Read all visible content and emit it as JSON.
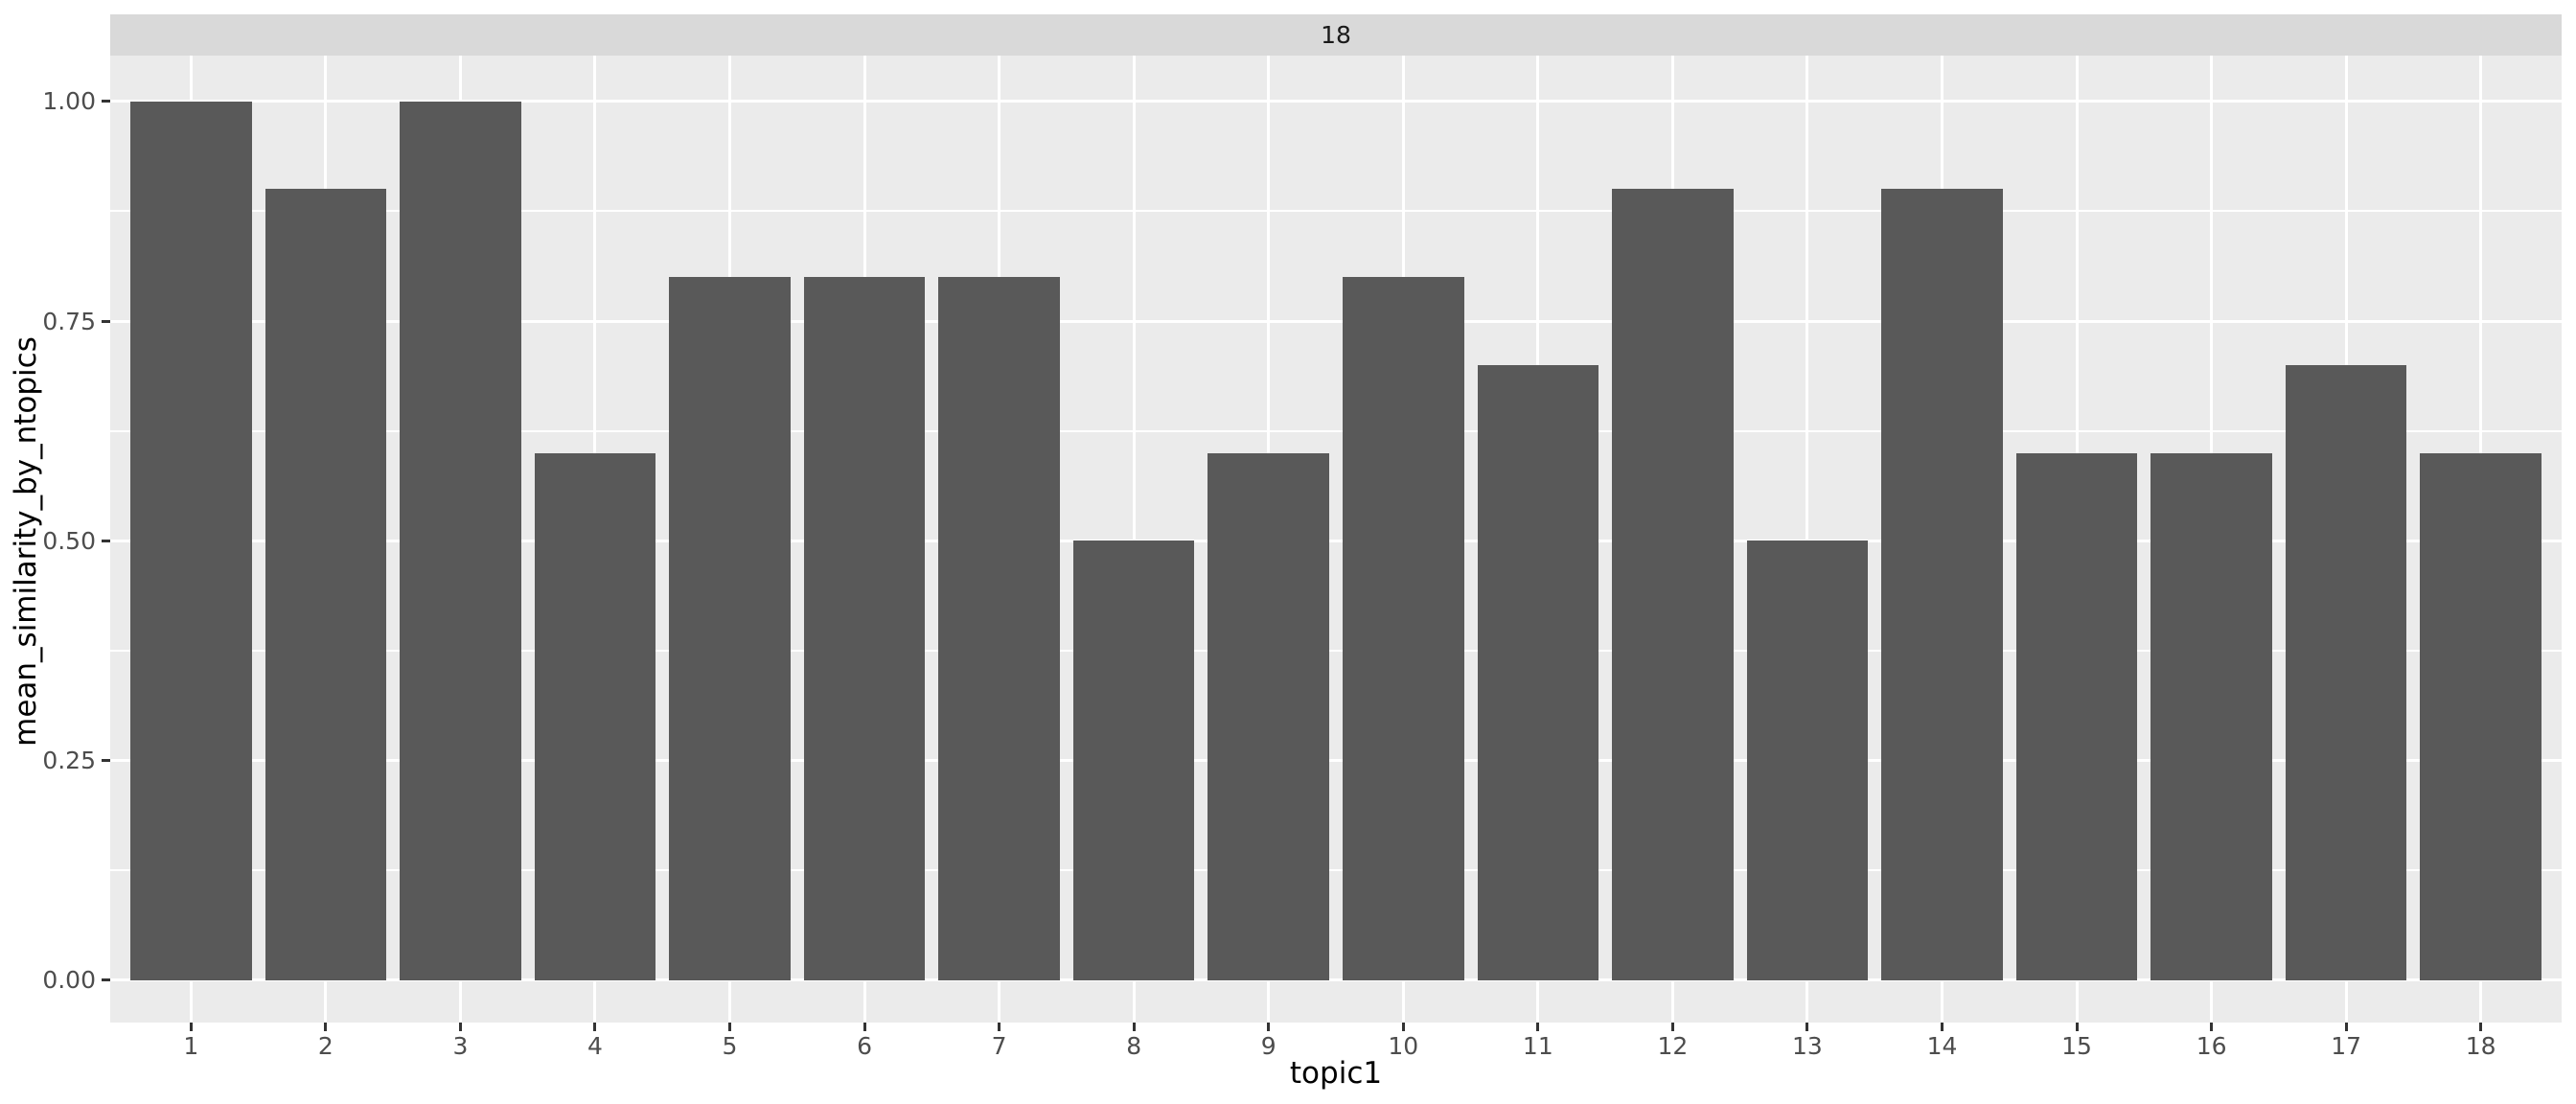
{
  "chart_data": {
    "type": "bar",
    "facet_label": "18",
    "title": "",
    "xlabel": "topic1",
    "ylabel": "mean_similarity_by_ntopics",
    "categories": [
      "1",
      "2",
      "3",
      "4",
      "5",
      "6",
      "7",
      "8",
      "9",
      "10",
      "11",
      "12",
      "13",
      "14",
      "15",
      "16",
      "17",
      "18"
    ],
    "values": [
      1.0,
      0.9,
      1.0,
      0.6,
      0.8,
      0.8,
      0.8,
      0.5,
      0.6,
      0.8,
      0.7,
      0.9,
      0.5,
      0.9,
      0.6,
      0.6,
      0.7,
      0.6
    ],
    "y_ticks": [
      {
        "value": 0.0,
        "label": "0.00"
      },
      {
        "value": 0.25,
        "label": "0.25"
      },
      {
        "value": 0.5,
        "label": "0.50"
      },
      {
        "value": 0.75,
        "label": "0.75"
      },
      {
        "value": 1.0,
        "label": "1.00"
      }
    ],
    "y_minor_ticks": [
      0.125,
      0.375,
      0.625,
      0.875
    ],
    "ylim": [
      -0.048,
      1.052
    ],
    "bar_width_frac": 0.9,
    "grid": "on",
    "legend": "none",
    "colors": {
      "bar": "#595959",
      "panel_bg": "#EBEBEB",
      "strip_bg": "#D9D9D9",
      "grid": "#FFFFFF",
      "axis_text": "#4D4D4D",
      "tick_mark": "#333333",
      "title_text": "#000000",
      "strip_text": "#1A1A1A",
      "page_bg": "#FFFFFF"
    }
  }
}
